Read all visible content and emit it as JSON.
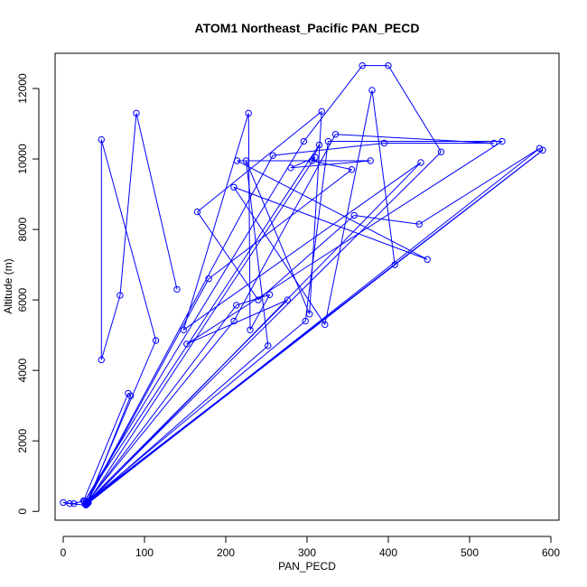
{
  "chart_data": {
    "type": "line",
    "title": "ATOM1 Northeast_Pacific PAN_PECD",
    "xlabel": "PAN_PECD",
    "ylabel": "Altitude (m)",
    "xlim": [
      -10,
      610
    ],
    "ylim": [
      -250,
      13000
    ],
    "x_ticks": [
      "0",
      "100",
      "200",
      "300",
      "400",
      "500",
      "600"
    ],
    "y_ticks": [
      "0",
      "2000",
      "4000",
      "6000",
      "8000",
      "10000",
      "12000"
    ],
    "grid": false,
    "legend": "none",
    "series_color": "#0000ff",
    "marker": "open-circle",
    "points": [
      [
        140,
        6300
      ],
      [
        90,
        11300
      ],
      [
        70,
        6130
      ],
      [
        47,
        4300
      ],
      [
        47,
        10550
      ],
      [
        114,
        4850
      ],
      [
        28,
        180
      ],
      [
        8,
        220
      ],
      [
        0,
        250
      ],
      [
        13,
        220
      ],
      [
        25,
        300
      ],
      [
        80,
        3350
      ],
      [
        83,
        3280
      ],
      [
        30,
        220
      ],
      [
        440,
        9900
      ],
      [
        148,
        5150
      ],
      [
        228,
        11300
      ],
      [
        230,
        5150
      ],
      [
        254,
        6150
      ],
      [
        213,
        5850
      ],
      [
        29,
        250
      ],
      [
        179,
        6600
      ],
      [
        355,
        9700
      ],
      [
        306,
        9950
      ],
      [
        315,
        10400
      ],
      [
        26,
        280
      ],
      [
        296,
        10500
      ],
      [
        368,
        12650
      ],
      [
        400,
        12650
      ],
      [
        465,
        10200
      ],
      [
        30,
        250
      ],
      [
        310,
        10050
      ],
      [
        280,
        9750
      ],
      [
        378,
        9950
      ],
      [
        214,
        9950
      ],
      [
        448,
        7150
      ],
      [
        210,
        9200
      ],
      [
        322,
        5300
      ],
      [
        380,
        11950
      ],
      [
        408,
        7000
      ],
      [
        27,
        200
      ],
      [
        258,
        10100
      ],
      [
        395,
        10450
      ],
      [
        530,
        10450
      ],
      [
        335,
        10700
      ],
      [
        210,
        5400
      ],
      [
        28,
        230
      ],
      [
        298,
        5400
      ],
      [
        326,
        10500
      ],
      [
        540,
        10500
      ],
      [
        152,
        4750
      ],
      [
        276,
        6000
      ],
      [
        30,
        280
      ],
      [
        590,
        10250
      ],
      [
        31,
        250
      ],
      [
        252,
        4700
      ],
      [
        225,
        9950
      ],
      [
        303,
        5600
      ],
      [
        318,
        11350
      ],
      [
        165,
        8500
      ],
      [
        240,
        6000
      ],
      [
        358,
        8400
      ],
      [
        438,
        8150
      ],
      [
        586,
        10300
      ],
      [
        29,
        200
      ]
    ]
  }
}
